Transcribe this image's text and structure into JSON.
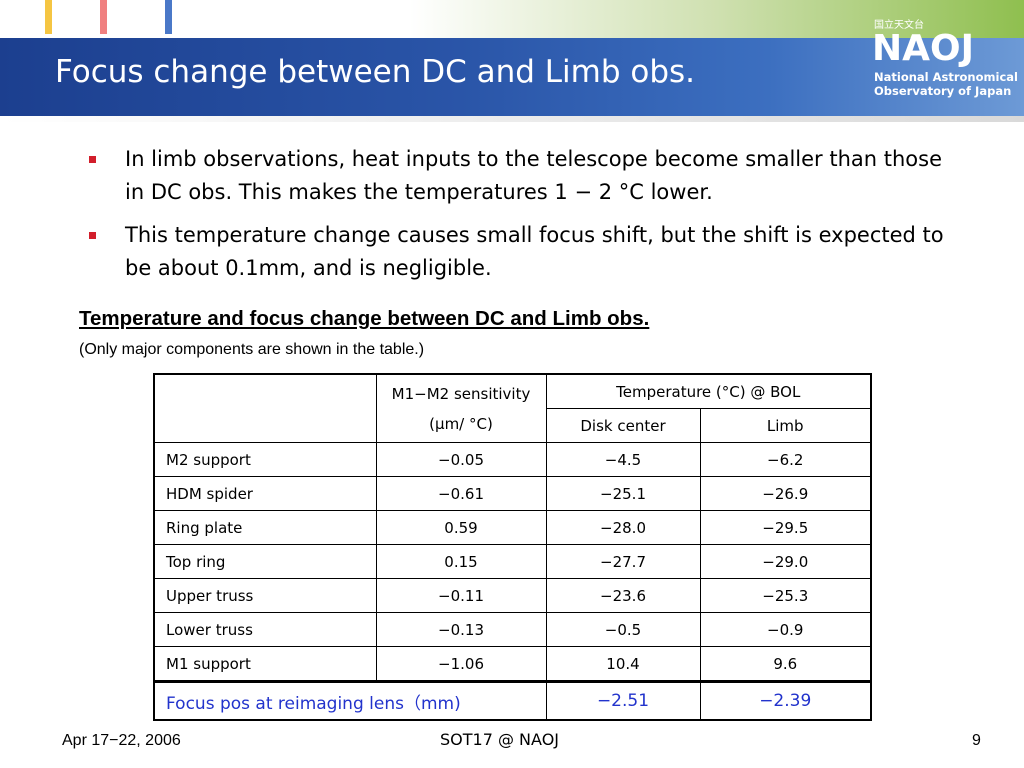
{
  "header": {
    "title": "Focus change between DC and Limb obs.",
    "logo": {
      "kanji": "国立天文台",
      "mark": "NAOJ",
      "line1": "National Astronomical",
      "line2": "Observatory of Japan"
    }
  },
  "bullets": [
    "In limb observations, heat inputs to the telescope become smaller than those in DC obs. This makes the temperatures 1 − 2 °C lower.",
    "This temperature change causes small focus shift, but the shift is expected to be about 0.1mm, and is negligible."
  ],
  "table": {
    "caption": "Temperature and focus change between DC and Limb obs.",
    "note": "(Only major components are shown in the table.)",
    "header": {
      "sensitivity": "M1−M2 sensitivity",
      "sensitivity_unit": "(μm/ °C)",
      "temperature": "Temperature (°C) @ BOL",
      "disk": "Disk center",
      "limb": "Limb"
    },
    "rows": [
      [
        "M2 support",
        "−0.05",
        "−4.5",
        "−6.2"
      ],
      [
        "HDM spider",
        "−0.61",
        "−25.1",
        "−26.9"
      ],
      [
        "Ring plate",
        "0.59",
        "−28.0",
        "−29.5"
      ],
      [
        "Top ring",
        "0.15",
        "−27.7",
        "−29.0"
      ],
      [
        "Upper truss",
        "−0.11",
        "−23.6",
        "−25.3"
      ],
      [
        "Lower truss",
        "−0.13",
        "−0.5",
        "−0.9"
      ],
      [
        "M1 support",
        "−1.06",
        "10.4",
        "9.6"
      ]
    ],
    "focus": {
      "label": "Focus pos at reimaging lens（mm)",
      "disk": "−2.51",
      "limb": "−2.39"
    }
  },
  "footer": {
    "date": "Apr 17−22, 2006",
    "center": "SOT17 @ NAOJ",
    "page": "9"
  }
}
